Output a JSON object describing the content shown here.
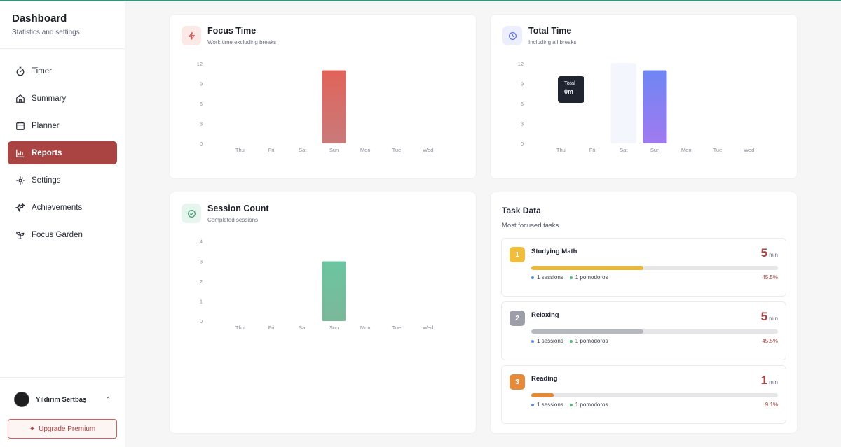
{
  "sidebar": {
    "title": "Dashboard",
    "subtitle": "Statistics and settings",
    "items": [
      {
        "label": "Timer",
        "icon": "timer-icon"
      },
      {
        "label": "Summary",
        "icon": "home-icon"
      },
      {
        "label": "Planner",
        "icon": "calendar-icon"
      },
      {
        "label": "Reports",
        "icon": "bar-chart-icon",
        "active": true
      },
      {
        "label": "Settings",
        "icon": "gear-icon"
      },
      {
        "label": "Achievements",
        "icon": "sparkles-icon"
      },
      {
        "label": "Focus Garden",
        "icon": "sprout-icon"
      }
    ],
    "user_name": "Yıldırım Sertbaş",
    "upgrade_label": "Upgrade Premium"
  },
  "focus_time": {
    "title": "Focus Time",
    "subtitle": "Work time excluding breaks",
    "accent": "#e0645a"
  },
  "total_time": {
    "title": "Total Time",
    "subtitle": "Including all breaks",
    "tooltip_label": "Total",
    "tooltip_value": "0m",
    "accent": "#7b84f5"
  },
  "session_count": {
    "title": "Session Count",
    "subtitle": "Completed sessions",
    "accent": "#6cc5a0"
  },
  "chart_data": [
    {
      "type": "bar",
      "title": "Focus Time",
      "categories": [
        "Thu",
        "Fri",
        "Sat",
        "Sun",
        "Mon",
        "Tue",
        "Wed"
      ],
      "values": [
        0,
        0,
        0,
        11,
        0,
        0,
        0
      ],
      "yticks": [
        0,
        3,
        6,
        9,
        12
      ],
      "ylim": [
        0,
        12
      ],
      "colors": [
        "#e0645a",
        "#c97a7a"
      ]
    },
    {
      "type": "bar",
      "title": "Total Time",
      "categories": [
        "Thu",
        "Fri",
        "Sat",
        "Sun",
        "Mon",
        "Tue",
        "Wed"
      ],
      "values": [
        0,
        0,
        0,
        11,
        0,
        0,
        0
      ],
      "yticks": [
        0,
        3,
        6,
        9,
        12
      ],
      "ylim": [
        0,
        12
      ],
      "highlight_index": 2,
      "colors": [
        "#6f86f3",
        "#a07af0"
      ]
    },
    {
      "type": "bar",
      "title": "Session Count",
      "categories": [
        "Thu",
        "Fri",
        "Sat",
        "Sun",
        "Mon",
        "Tue",
        "Wed"
      ],
      "values": [
        0,
        0,
        0,
        3,
        0,
        0,
        0
      ],
      "yticks": [
        0,
        1,
        2,
        3,
        4
      ],
      "ylim": [
        0,
        4
      ],
      "colors": [
        "#6cc5a0",
        "#7ab89a"
      ]
    }
  ],
  "task_data": {
    "title": "Task Data",
    "subtitle": "Most focused tasks",
    "min_unit": "min",
    "tasks": [
      {
        "rank": "1",
        "name": "Studying Math",
        "minutes": "5",
        "sessions": "1 sessions",
        "pomodoros": "1 pomodoros",
        "percent": "45.5%",
        "fraction": 0.455,
        "color": "#e8b83a",
        "rank_color": "#f0bd3c"
      },
      {
        "rank": "2",
        "name": "Relaxing",
        "minutes": "5",
        "sessions": "1 sessions",
        "pomodoros": "1 pomodoros",
        "percent": "45.5%",
        "fraction": 0.455,
        "color": "#b6b8c0",
        "rank_color": "#9c9fa8"
      },
      {
        "rank": "3",
        "name": "Reading",
        "minutes": "1",
        "sessions": "1 sessions",
        "pomodoros": "1 pomodoros",
        "percent": "9.1%",
        "fraction": 0.091,
        "color": "#e08a3a",
        "rank_color": "#e58a3a"
      }
    ]
  }
}
